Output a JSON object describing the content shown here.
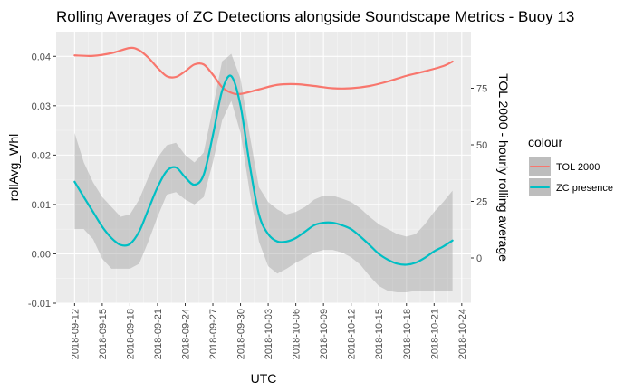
{
  "chart_data": {
    "type": "line",
    "title": "Rolling Averages of ZC Detections alongside Soundscape Metrics - Buoy 13",
    "xlabel": "UTC",
    "ylabel": "rollAvg_Whl",
    "y2label": "TOL 2000 - hourly rolling average",
    "xlim": [
      "2018-09-10",
      "2018-10-25"
    ],
    "ylim": [
      -0.01,
      0.045
    ],
    "y2lim": [
      -20,
      100
    ],
    "x_ticks": [
      "2018-09-12",
      "2018-09-15",
      "2018-09-18",
      "2018-09-21",
      "2018-09-24",
      "2018-09-27",
      "2018-09-30",
      "2018-10-03",
      "2018-10-06",
      "2018-10-09",
      "2018-10-12",
      "2018-10-15",
      "2018-10-18",
      "2018-10-21",
      "2018-10-24"
    ],
    "y_ticks": [
      "-0.01",
      "0.00",
      "0.01",
      "0.02",
      "0.03",
      "0.04"
    ],
    "y_tick_values": [
      -0.01,
      0.0,
      0.01,
      0.02,
      0.03,
      0.04
    ],
    "y2_ticks": [
      "0",
      "25",
      "50",
      "75"
    ],
    "y2_tick_values": [
      0,
      25,
      50,
      75
    ],
    "grid": true,
    "panel_color": "#ebebeb",
    "legend": {
      "title": "colour",
      "position": "right",
      "entries": [
        {
          "label": "TOL 2000",
          "color": "#f8766d"
        },
        {
          "label": "ZC presence",
          "color": "#00bfc4"
        }
      ]
    },
    "series": [
      {
        "name": "TOL 2000",
        "axis": "right",
        "color": "#f8766d",
        "x": [
          "2018-09-12",
          "2018-09-14",
          "2018-09-16",
          "2018-09-18",
          "2018-09-19",
          "2018-09-20",
          "2018-09-21",
          "2018-09-22",
          "2018-09-23",
          "2018-09-24",
          "2018-09-25",
          "2018-09-26",
          "2018-09-27",
          "2018-09-28",
          "2018-09-29",
          "2018-09-30",
          "2018-10-02",
          "2018-10-04",
          "2018-10-06",
          "2018-10-08",
          "2018-10-10",
          "2018-10-12",
          "2018-10-14",
          "2018-10-16",
          "2018-10-18",
          "2018-10-20",
          "2018-10-22",
          "2018-10-23"
        ],
        "y": [
          89.5,
          89.3,
          90.5,
          92.8,
          91.8,
          88.5,
          84.0,
          80.3,
          80.0,
          82.5,
          85.5,
          85.5,
          81.0,
          75.5,
          73.0,
          72.5,
          74.5,
          76.5,
          76.8,
          76.0,
          75.0,
          75.0,
          76.0,
          78.0,
          80.5,
          82.5,
          84.8,
          86.8
        ]
      },
      {
        "name": "ZC presence",
        "axis": "left",
        "color": "#00bfc4",
        "x": [
          "2018-09-12",
          "2018-09-13",
          "2018-09-14",
          "2018-09-15",
          "2018-09-16",
          "2018-09-17",
          "2018-09-18",
          "2018-09-19",
          "2018-09-20",
          "2018-09-21",
          "2018-09-22",
          "2018-09-23",
          "2018-09-24",
          "2018-09-25",
          "2018-09-26",
          "2018-09-27",
          "2018-09-28",
          "2018-09-29",
          "2018-09-30",
          "2018-10-01",
          "2018-10-02",
          "2018-10-03",
          "2018-10-04",
          "2018-10-05",
          "2018-10-06",
          "2018-10-07",
          "2018-10-08",
          "2018-10-09",
          "2018-10-10",
          "2018-10-11",
          "2018-10-12",
          "2018-10-13",
          "2018-10-14",
          "2018-10-15",
          "2018-10-16",
          "2018-10-17",
          "2018-10-18",
          "2018-10-19",
          "2018-10-20",
          "2018-10-21",
          "2018-10-22",
          "2018-10-23"
        ],
        "y": [
          0.0146,
          0.0115,
          0.0085,
          0.0055,
          0.0032,
          0.0018,
          0.002,
          0.0045,
          0.009,
          0.0135,
          0.0168,
          0.0175,
          0.0155,
          0.014,
          0.016,
          0.024,
          0.033,
          0.036,
          0.03,
          0.018,
          0.008,
          0.004,
          0.0025,
          0.0025,
          0.0032,
          0.0045,
          0.0058,
          0.0063,
          0.0063,
          0.0058,
          0.005,
          0.0035,
          0.0018,
          0.0,
          -0.0012,
          -0.002,
          -0.0022,
          -0.0018,
          -0.0008,
          0.0005,
          0.0015,
          0.0027
        ],
        "ci_lower": [
          0.005,
          0.005,
          0.003,
          -0.001,
          -0.003,
          -0.003,
          -0.003,
          -0.002,
          0.0025,
          0.0075,
          0.012,
          0.0125,
          0.011,
          0.01,
          0.0115,
          0.0185,
          0.027,
          0.031,
          0.0245,
          0.0125,
          0.0025,
          -0.0025,
          -0.004,
          -0.003,
          -0.0018,
          -0.0008,
          0.0003,
          0.0008,
          0.0008,
          0.0003,
          -0.0007,
          -0.0022,
          -0.0045,
          -0.0065,
          -0.0075,
          -0.0078,
          -0.0078,
          -0.0075,
          -0.0075,
          -0.0075,
          -0.0075,
          -0.0075
        ],
        "ci_upper": [
          0.0245,
          0.0185,
          0.0145,
          0.0115,
          0.0095,
          0.0075,
          0.008,
          0.011,
          0.0155,
          0.0195,
          0.022,
          0.0225,
          0.02,
          0.0185,
          0.0205,
          0.0295,
          0.039,
          0.0405,
          0.0355,
          0.024,
          0.0135,
          0.0105,
          0.009,
          0.008,
          0.0085,
          0.0095,
          0.011,
          0.0118,
          0.0118,
          0.0112,
          0.0105,
          0.0092,
          0.0075,
          0.006,
          0.005,
          0.004,
          0.0035,
          0.004,
          0.006,
          0.0085,
          0.0105,
          0.0128
        ]
      }
    ]
  }
}
